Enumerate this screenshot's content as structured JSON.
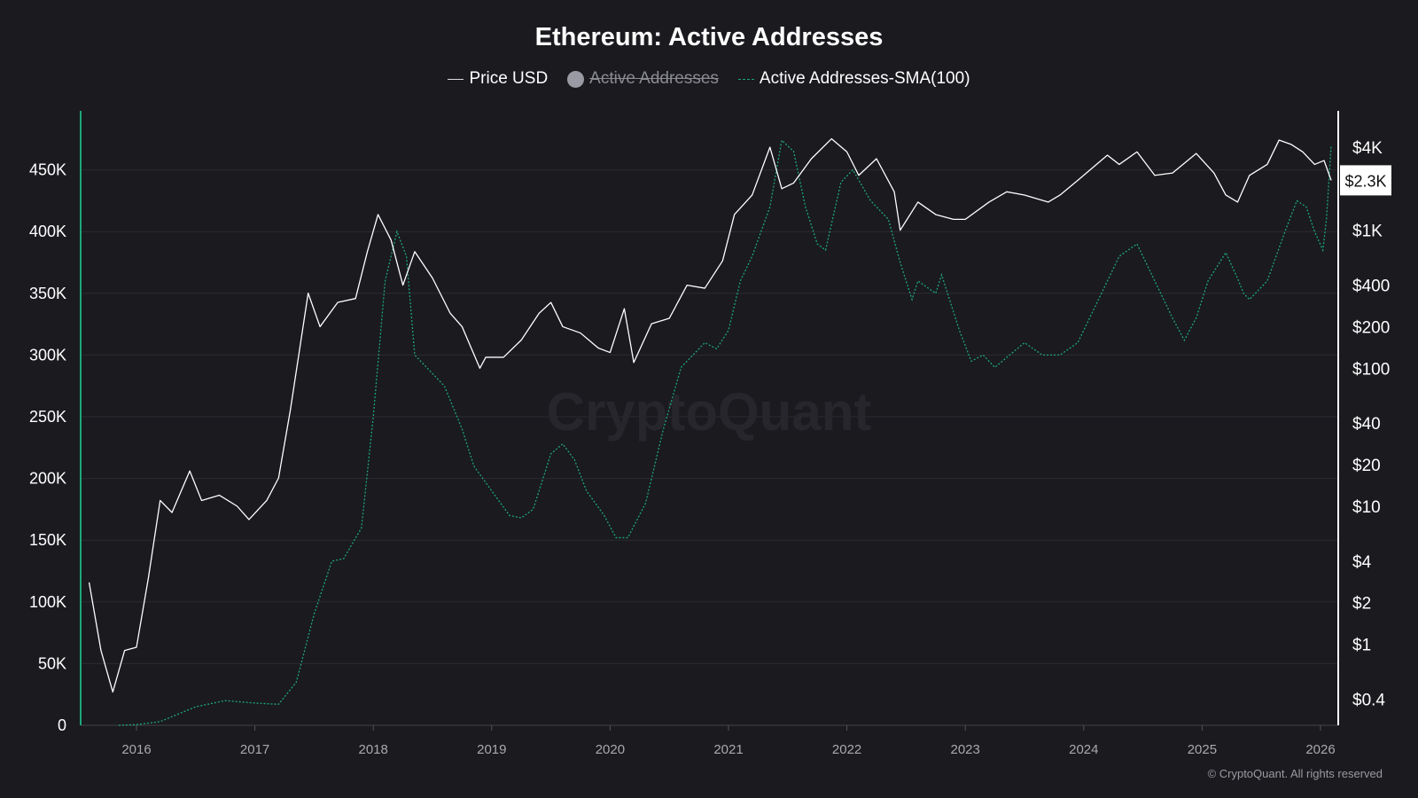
{
  "chart_data": {
    "type": "line",
    "title": "Ethereum: Active Addresses",
    "legend_position": "top-center",
    "grid": true,
    "watermark": "CryptoQuant",
    "copyright": "© CryptoQuant. All rights reserved",
    "x_ticks": [
      "2016",
      "2017",
      "2018",
      "2019",
      "2020",
      "2021",
      "2022",
      "2023",
      "2024",
      "2025",
      "2026"
    ],
    "xlim": [
      2015.58,
      2026.12
    ],
    "left_axis": {
      "scale": "linear",
      "ylim": [
        0,
        500000
      ],
      "ticks": [
        "0",
        "50K",
        "100K",
        "150K",
        "200K",
        "250K",
        "300K",
        "350K",
        "400K",
        "450K"
      ],
      "color": "#1fa67a"
    },
    "right_axis": {
      "scale": "log",
      "ylim": [
        0.2,
        8000
      ],
      "ticks": [
        "$4K",
        "$1K",
        "$400",
        "$200",
        "$100",
        "$40",
        "$20",
        "$10",
        "$4",
        "$2",
        "$1",
        "$0.4"
      ],
      "tick_values": [
        4000,
        1000,
        400,
        200,
        100,
        40,
        20,
        10,
        4,
        2,
        1,
        0.4
      ],
      "current_label": "$2.3K",
      "current_value": 2300
    },
    "series": [
      {
        "name": "Price USD",
        "axis": "right",
        "color": "#ffffff",
        "style": "solid",
        "visible": true,
        "x": [
          2015.6,
          2015.7,
          2015.8,
          2015.9,
          2016.0,
          2016.1,
          2016.2,
          2016.3,
          2016.45,
          2016.55,
          2016.7,
          2016.85,
          2016.95,
          2017.1,
          2017.2,
          2017.3,
          2017.45,
          2017.55,
          2017.7,
          2017.85,
          2017.95,
          2018.04,
          2018.15,
          2018.25,
          2018.35,
          2018.5,
          2018.65,
          2018.75,
          2018.9,
          2018.95,
          2019.1,
          2019.25,
          2019.4,
          2019.5,
          2019.6,
          2019.75,
          2019.9,
          2020.0,
          2020.12,
          2020.2,
          2020.35,
          2020.5,
          2020.65,
          2020.8,
          2020.95,
          2021.05,
          2021.2,
          2021.35,
          2021.45,
          2021.55,
          2021.7,
          2021.87,
          2022.0,
          2022.1,
          2022.25,
          2022.4,
          2022.45,
          2022.6,
          2022.75,
          2022.9,
          2023.0,
          2023.2,
          2023.35,
          2023.5,
          2023.7,
          2023.8,
          2023.95,
          2024.2,
          2024.3,
          2024.45,
          2024.6,
          2024.75,
          2024.95,
          2025.1,
          2025.2,
          2025.3,
          2025.4,
          2025.55,
          2025.65,
          2025.75,
          2025.85,
          2025.95,
          2026.03,
          2026.09
        ],
        "values": [
          2.8,
          0.9,
          0.45,
          0.9,
          0.95,
          3,
          11,
          9,
          18,
          11,
          12,
          10,
          8,
          11,
          16,
          50,
          350,
          200,
          300,
          320,
          700,
          1300,
          850,
          400,
          700,
          450,
          250,
          200,
          100,
          120,
          120,
          160,
          250,
          300,
          200,
          180,
          140,
          130,
          270,
          110,
          210,
          230,
          400,
          380,
          600,
          1300,
          1800,
          4000,
          2000,
          2200,
          3300,
          4600,
          3700,
          2500,
          3300,
          1900,
          1000,
          1600,
          1300,
          1200,
          1200,
          1600,
          1900,
          1800,
          1600,
          1800,
          2300,
          3500,
          3000,
          3700,
          2500,
          2600,
          3600,
          2600,
          1800,
          1600,
          2500,
          3000,
          4500,
          4200,
          3700,
          3000,
          3200,
          2300
        ]
      },
      {
        "name": "Active Addresses",
        "axis": "left",
        "color": "#9a9aa4",
        "visible": false
      },
      {
        "name": "Active Addresses-SMA(100)",
        "axis": "left",
        "color": "#1fa67a",
        "style": "dashed",
        "visible": true,
        "x": [
          2015.85,
          2016.0,
          2016.2,
          2016.5,
          2016.75,
          2017.0,
          2017.2,
          2017.35,
          2017.5,
          2017.65,
          2017.75,
          2017.9,
          2018.0,
          2018.1,
          2018.2,
          2018.28,
          2018.35,
          2018.5,
          2018.6,
          2018.75,
          2018.85,
          2019.0,
          2019.15,
          2019.25,
          2019.35,
          2019.5,
          2019.6,
          2019.7,
          2019.8,
          2019.95,
          2020.05,
          2020.15,
          2020.3,
          2020.45,
          2020.6,
          2020.7,
          2020.8,
          2020.9,
          2021.0,
          2021.1,
          2021.2,
          2021.35,
          2021.45,
          2021.55,
          2021.65,
          2021.75,
          2021.82,
          2021.95,
          2022.05,
          2022.2,
          2022.35,
          2022.45,
          2022.55,
          2022.6,
          2022.75,
          2022.8,
          2022.95,
          2023.05,
          2023.15,
          2023.25,
          2023.35,
          2023.5,
          2023.65,
          2023.8,
          2023.95,
          2024.1,
          2024.3,
          2024.45,
          2024.6,
          2024.75,
          2024.85,
          2024.95,
          2025.05,
          2025.2,
          2025.3,
          2025.35,
          2025.4,
          2025.55,
          2025.7,
          2025.8,
          2025.88,
          2025.95,
          2026.02,
          2026.05,
          2026.09
        ],
        "values": [
          0,
          500,
          3000,
          15000,
          20000,
          18000,
          17000,
          35000,
          90000,
          133000,
          135000,
          160000,
          250000,
          360000,
          400000,
          380000,
          300000,
          285000,
          275000,
          240000,
          210000,
          190000,
          170000,
          168000,
          175000,
          220000,
          228000,
          215000,
          190000,
          170000,
          152000,
          152000,
          180000,
          240000,
          290000,
          300000,
          310000,
          305000,
          320000,
          360000,
          380000,
          420000,
          474000,
          465000,
          420000,
          390000,
          385000,
          440000,
          450000,
          425000,
          410000,
          375000,
          345000,
          360000,
          350000,
          365000,
          320000,
          295000,
          300000,
          290000,
          298000,
          310000,
          300000,
          300000,
          310000,
          340000,
          380000,
          390000,
          360000,
          330000,
          312000,
          330000,
          360000,
          383000,
          362000,
          350000,
          345000,
          360000,
          400000,
          425000,
          420000,
          400000,
          385000,
          410000,
          470000
        ]
      }
    ]
  }
}
